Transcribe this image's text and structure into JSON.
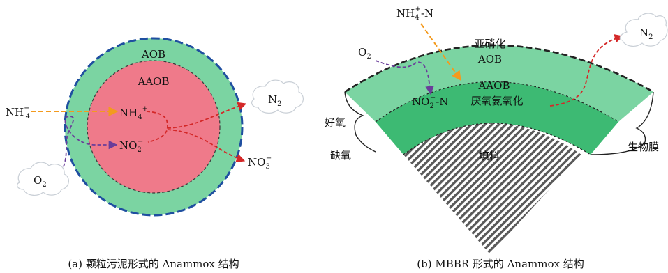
{
  "left_diagram": {
    "outer_layer": "AOB",
    "inner_core": "AAOB",
    "nh4_in": "NH4+",
    "nh4_inner": "NH4+",
    "no2_inner": "NO2-",
    "o2": "O2",
    "n2": "N2",
    "no3": "NO3-",
    "caption": "(a)  颗粒污泥形式的 Anammox 结构"
  },
  "right_diagram": {
    "nh4_n": "NH4+-N",
    "o2": "O2",
    "n2": "N2",
    "outer_layer_line1": "亚硝化",
    "outer_layer_line2": "AOB",
    "inner_layer_line1": "AAOB",
    "inner_layer_line2": "厌氧氨氧化",
    "no2_n": "NO2--N",
    "aerobic": "好氧",
    "anoxic": "缺氧",
    "carrier": "填料",
    "biofilm": "生物膜",
    "caption": "(b)  MBBR 形式的 Anammox 结构"
  },
  "colors": {
    "light_green": "#7bd4a2",
    "dark_green": "#3dba73",
    "pink_core": "#ef7a8a",
    "blue_dash": "#1f4fa0",
    "orange_arrow": "#f39a1e",
    "purple_arrow": "#6a3d9a",
    "red_arrow": "#d42828"
  }
}
